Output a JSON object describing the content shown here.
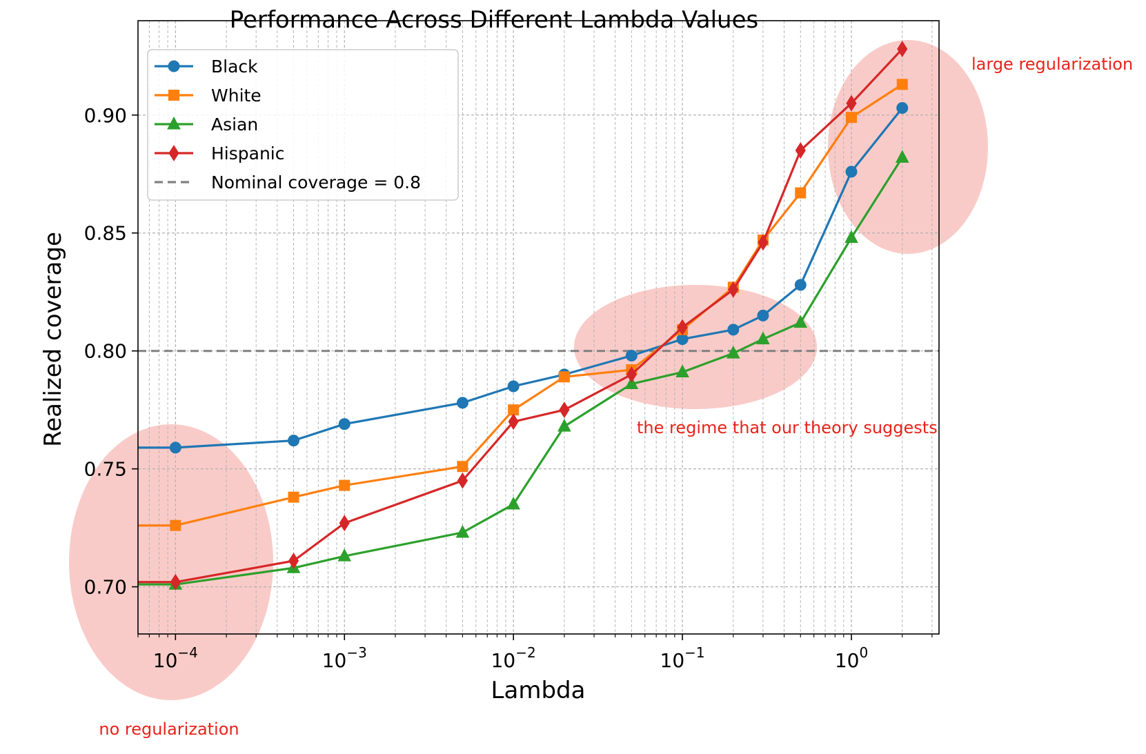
{
  "chart_data": {
    "type": "line",
    "title": "Performance Across Different Lambda Values",
    "xlabel": "Lambda",
    "ylabel": "Realized coverage",
    "xscale": "log",
    "xlim": [
      6e-05,
      3.3
    ],
    "ylim": [
      0.68,
      0.94
    ],
    "grid": true,
    "legend_location": "upper-left",
    "x": [
      0.0001,
      0.0005,
      0.001,
      0.005,
      0.01,
      0.02,
      0.05,
      0.1,
      0.2,
      0.3,
      0.5,
      1,
      2
    ],
    "xticks": [
      {
        "value": 0.0001,
        "base": "10",
        "exp": "−4"
      },
      {
        "value": 0.001,
        "base": "10",
        "exp": "−3"
      },
      {
        "value": 0.01,
        "base": "10",
        "exp": "−2"
      },
      {
        "value": 0.1,
        "base": "10",
        "exp": "−1"
      },
      {
        "value": 1,
        "base": "10",
        "exp": "0"
      }
    ],
    "yticks": [
      {
        "value": 0.7,
        "label": "0.70"
      },
      {
        "value": 0.75,
        "label": "0.75"
      },
      {
        "value": 0.8,
        "label": "0.80"
      },
      {
        "value": 0.85,
        "label": "0.85"
      },
      {
        "value": 0.9,
        "label": "0.90"
      }
    ],
    "series": [
      {
        "name": "Black",
        "color": "#1f77b4",
        "marker": "circle",
        "values": [
          0.759,
          0.762,
          0.769,
          0.778,
          0.785,
          0.79,
          0.798,
          0.805,
          0.809,
          0.815,
          0.828,
          0.876,
          0.903
        ]
      },
      {
        "name": "White",
        "color": "#ff7f0e",
        "marker": "square",
        "values": [
          0.726,
          0.738,
          0.743,
          0.751,
          0.775,
          0.789,
          0.792,
          0.809,
          0.827,
          0.847,
          0.867,
          0.899,
          0.913
        ]
      },
      {
        "name": "Asian",
        "color": "#2ca02c",
        "marker": "triangle",
        "values": [
          0.701,
          0.708,
          0.713,
          0.723,
          0.735,
          0.768,
          0.786,
          0.791,
          0.799,
          0.805,
          0.812,
          0.848,
          0.882
        ]
      },
      {
        "name": "Hispanic",
        "color": "#d62728",
        "marker": "diamond",
        "values": [
          0.702,
          0.711,
          0.727,
          0.745,
          0.77,
          0.775,
          0.79,
          0.81,
          0.826,
          0.846,
          0.885,
          0.905,
          0.928
        ]
      }
    ],
    "reference_line": {
      "name": "Nominal coverage = 0.8",
      "value": 0.8,
      "color": "#808080",
      "style": "dashed"
    },
    "annotations": [
      {
        "text": "no regularization",
        "color": "#e8231b"
      },
      {
        "text": "the regime that our theory suggests",
        "color": "#e8231b"
      },
      {
        "text": "large regularization",
        "color": "#e8231b"
      }
    ],
    "highlight_color": "#f4a09a"
  }
}
